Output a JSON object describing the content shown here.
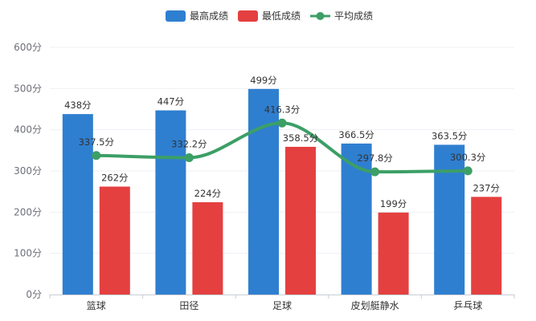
{
  "chart_data": {
    "type": "bar",
    "categories": [
      "篮球",
      "田径",
      "足球",
      "皮划艇静水",
      "乒乓球"
    ],
    "series": [
      {
        "name": "最高成绩",
        "kind": "bar",
        "color": "#2f7fd0",
        "values": [
          438,
          447,
          499,
          366.5,
          363.5
        ]
      },
      {
        "name": "最低成绩",
        "kind": "bar",
        "color": "#e44040",
        "values": [
          262,
          224,
          358.5,
          199,
          237
        ]
      },
      {
        "name": "平均成绩",
        "kind": "line",
        "color": "#3c9f66",
        "values": [
          337.5,
          332.2,
          416.3,
          297.8,
          300.3
        ]
      }
    ],
    "unit": "分",
    "ylim": [
      0,
      600
    ],
    "yticks": [
      0,
      100,
      200,
      300,
      400,
      500,
      600
    ],
    "ytick_labels": [
      "0分",
      "100分",
      "200分",
      "300分",
      "400分",
      "500分",
      "600分"
    ],
    "bar_labels": [
      [
        "438分",
        "447分",
        "499分",
        "366.5分",
        "363.5分"
      ],
      [
        "262分",
        "224分",
        "358.5分",
        "199分",
        "237分"
      ]
    ],
    "line_labels": [
      "337.5分",
      "332.2分",
      "416.3分",
      "297.8分",
      "300.3分"
    ],
    "legend_position": "top-center",
    "grid": true,
    "smooth_line": true
  }
}
